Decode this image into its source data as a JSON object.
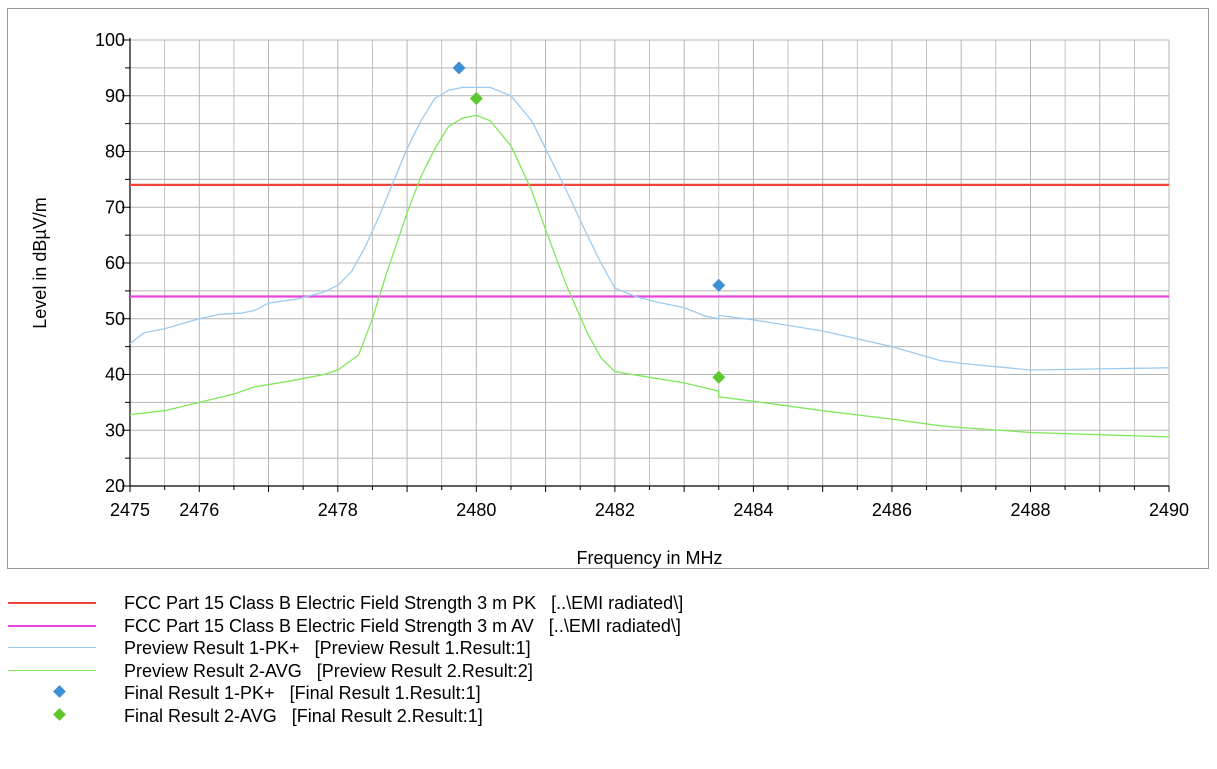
{
  "chart_data": {
    "type": "line",
    "xlabel": "Frequency in MHz",
    "ylabel": "Level in dBµV/m",
    "xlim": [
      2475,
      2490
    ],
    "ylim": [
      20,
      100
    ],
    "x_ticks": [
      2475,
      2476,
      2478,
      2480,
      2482,
      2484,
      2486,
      2488,
      2490
    ],
    "y_ticks": [
      20,
      30,
      40,
      50,
      60,
      70,
      80,
      90,
      100
    ],
    "grid": true,
    "legend_position": "bottom",
    "series": [
      {
        "name": "FCC Part 15 Class B Electric Field Strength 3 m PK   [..\\EMI radiated\\]",
        "kind": "limit",
        "color": "#f0443a",
        "points": [
          [
            2475,
            74
          ],
          [
            2490,
            74
          ]
        ]
      },
      {
        "name": "FCC Part 15 Class B Electric Field Strength 3 m AV   [..\\EMI radiated\\]",
        "kind": "limit",
        "color": "#e845e0",
        "points": [
          [
            2475,
            54
          ],
          [
            2490,
            54
          ]
        ]
      },
      {
        "name": "Preview Result 1-PK+   [Preview Result 1.Result:1]",
        "kind": "trace",
        "color": "#9ccbef",
        "points": [
          [
            2475.0,
            45.5
          ],
          [
            2475.2,
            47.5
          ],
          [
            2475.5,
            48.2
          ],
          [
            2476.0,
            50.0
          ],
          [
            2476.3,
            50.8
          ],
          [
            2476.6,
            51.0
          ],
          [
            2476.8,
            51.5
          ],
          [
            2477.0,
            52.8
          ],
          [
            2477.4,
            53.5
          ],
          [
            2477.8,
            54.8
          ],
          [
            2478.0,
            56.0
          ],
          [
            2478.2,
            58.5
          ],
          [
            2478.4,
            63.0
          ],
          [
            2478.6,
            68.5
          ],
          [
            2478.8,
            74.5
          ],
          [
            2479.0,
            80.5
          ],
          [
            2479.2,
            85.5
          ],
          [
            2479.4,
            89.5
          ],
          [
            2479.6,
            91.0
          ],
          [
            2479.8,
            91.5
          ],
          [
            2480.0,
            91.5
          ],
          [
            2480.2,
            91.5
          ],
          [
            2480.5,
            90.0
          ],
          [
            2480.8,
            85.5
          ],
          [
            2481.0,
            80.5
          ],
          [
            2481.3,
            73.0
          ],
          [
            2481.6,
            65.0
          ],
          [
            2481.8,
            60.0
          ],
          [
            2482.0,
            55.5
          ],
          [
            2482.3,
            54.0
          ],
          [
            2482.6,
            53.0
          ],
          [
            2483.0,
            52.0
          ],
          [
            2483.3,
            50.5
          ],
          [
            2483.5,
            50.0
          ],
          [
            2483.5,
            50.6
          ],
          [
            2484.0,
            49.8
          ],
          [
            2485.0,
            47.8
          ],
          [
            2486.0,
            45.0
          ],
          [
            2486.7,
            42.5
          ],
          [
            2487.0,
            42.0
          ],
          [
            2488.0,
            40.8
          ],
          [
            2489.0,
            41.0
          ],
          [
            2490.0,
            41.2
          ]
        ]
      },
      {
        "name": "Preview Result 2-AVG   [Preview Result 2.Result:2]",
        "kind": "trace",
        "color": "#7fe85a",
        "points": [
          [
            2475.0,
            32.8
          ],
          [
            2475.5,
            33.5
          ],
          [
            2476.0,
            35.0
          ],
          [
            2476.5,
            36.5
          ],
          [
            2476.8,
            37.8
          ],
          [
            2477.3,
            38.8
          ],
          [
            2477.8,
            40.0
          ],
          [
            2478.0,
            40.8
          ],
          [
            2478.3,
            43.5
          ],
          [
            2478.5,
            50.0
          ],
          [
            2478.7,
            58.0
          ],
          [
            2479.0,
            69.0
          ],
          [
            2479.2,
            75.5
          ],
          [
            2479.4,
            80.5
          ],
          [
            2479.6,
            84.5
          ],
          [
            2479.8,
            86.0
          ],
          [
            2480.0,
            86.5
          ],
          [
            2480.2,
            85.5
          ],
          [
            2480.5,
            81.0
          ],
          [
            2480.8,
            73.0
          ],
          [
            2481.0,
            66.0
          ],
          [
            2481.3,
            56.0
          ],
          [
            2481.6,
            47.5
          ],
          [
            2481.8,
            43.0
          ],
          [
            2482.0,
            40.5
          ],
          [
            2482.5,
            39.5
          ],
          [
            2483.0,
            38.5
          ],
          [
            2483.5,
            37.0
          ],
          [
            2483.5,
            36.0
          ],
          [
            2484.0,
            35.2
          ],
          [
            2485.0,
            33.5
          ],
          [
            2486.0,
            32.0
          ],
          [
            2486.7,
            30.8
          ],
          [
            2487.0,
            30.5
          ],
          [
            2488.0,
            29.6
          ],
          [
            2489.0,
            29.2
          ],
          [
            2490.0,
            28.8
          ]
        ]
      },
      {
        "name": "Final Result 1-PK+   [Final Result 1.Result:1]",
        "kind": "marker",
        "color": "#3d8fd6",
        "points": [
          [
            2479.75,
            95.0
          ],
          [
            2483.5,
            56.0
          ]
        ]
      },
      {
        "name": "Final Result 2-AVG   [Final Result 2.Result:1]",
        "kind": "marker",
        "color": "#5cc72e",
        "points": [
          [
            2480.0,
            89.5
          ],
          [
            2483.5,
            39.5
          ]
        ]
      }
    ]
  }
}
